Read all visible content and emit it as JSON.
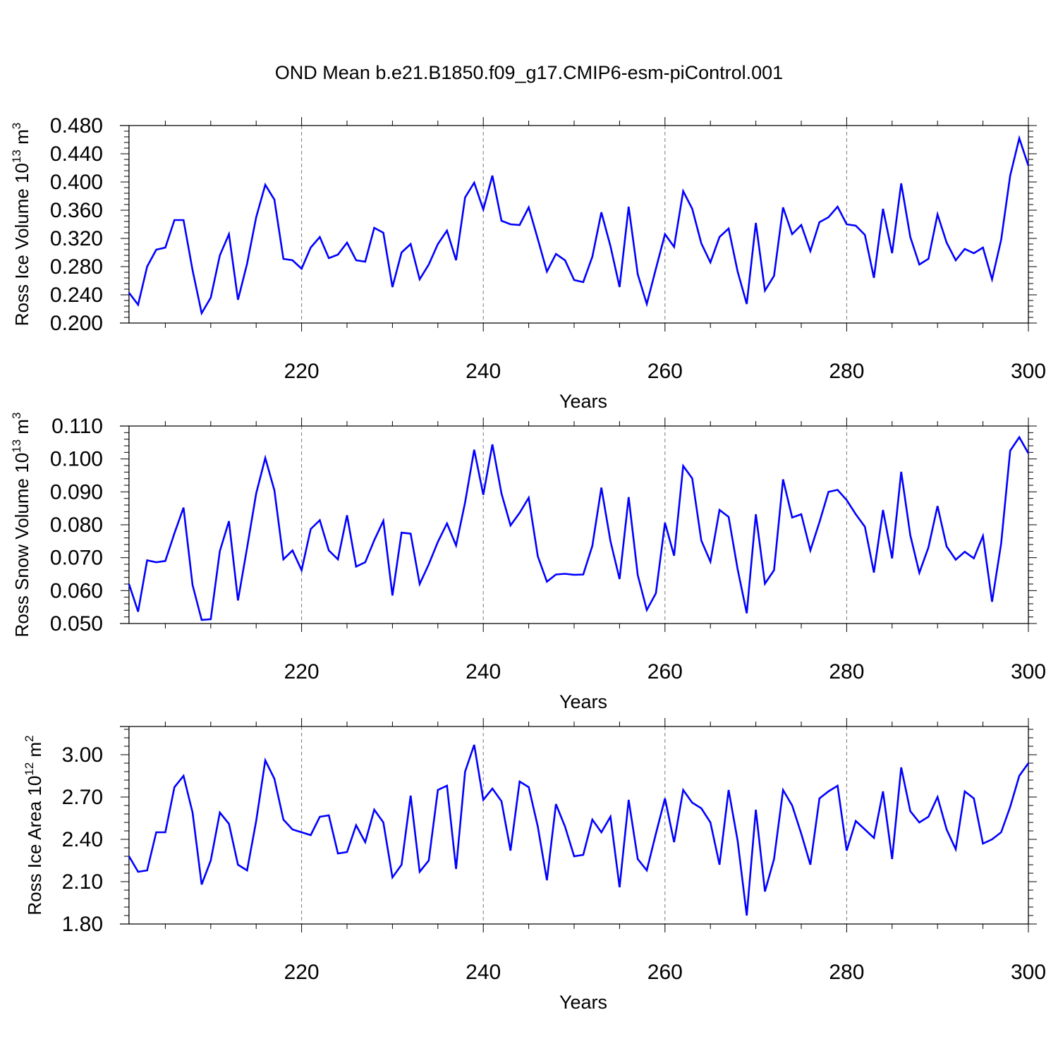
{
  "title": "OND Mean b.e21.B1850.f09_g17.CMIP6-esm-piControl.001",
  "colors": {
    "series": "#0000ff",
    "axis": "#000000",
    "grid": "#777777"
  },
  "chart_data": [
    {
      "type": "line",
      "ylabel_main": "Ross Ice Volume 10",
      "ylabel_exp1": "13",
      "ylabel_mid": " m",
      "ylabel_exp2": "3",
      "xlabel": "Years",
      "xlim": [
        200,
        300
      ],
      "ylim": [
        0.2,
        0.48
      ],
      "yticks": [
        "0.200",
        "0.240",
        "0.280",
        "0.320",
        "0.360",
        "0.400",
        "0.440",
        "0.480"
      ],
      "xticks": [
        "220",
        "240",
        "260",
        "280",
        "300"
      ],
      "grid": "vertical dashed at major x ticks",
      "x_start": 201,
      "values": [
        0.243,
        0.226,
        0.28,
        0.304,
        0.307,
        0.346,
        0.346,
        0.275,
        0.214,
        0.236,
        0.296,
        0.326,
        0.233,
        0.284,
        0.35,
        0.396,
        0.375,
        0.291,
        0.289,
        0.277,
        0.307,
        0.322,
        0.292,
        0.297,
        0.314,
        0.289,
        0.287,
        0.335,
        0.328,
        0.251,
        0.3,
        0.312,
        0.262,
        0.283,
        0.312,
        0.331,
        0.289,
        0.378,
        0.399,
        0.361,
        0.409,
        0.345,
        0.34,
        0.339,
        0.364,
        0.319,
        0.273,
        0.298,
        0.289,
        0.261,
        0.258,
        0.294,
        0.357,
        0.309,
        0.251,
        0.365,
        0.269,
        0.227,
        0.277,
        0.326,
        0.308,
        0.387,
        0.362,
        0.313,
        0.286,
        0.322,
        0.334,
        0.273,
        0.227,
        0.342,
        0.246,
        0.267,
        0.364,
        0.326,
        0.339,
        0.302,
        0.343,
        0.35,
        0.365,
        0.34,
        0.338,
        0.325,
        0.264,
        0.362,
        0.299,
        0.398,
        0.322,
        0.283,
        0.291,
        0.354,
        0.314,
        0.289,
        0.305,
        0.299,
        0.307,
        0.262,
        0.318,
        0.409,
        0.462,
        0.423
      ]
    },
    {
      "type": "line",
      "ylabel_main": "Ross Snow Volume 10",
      "ylabel_exp1": "13",
      "ylabel_mid": " m",
      "ylabel_exp2": "3",
      "xlabel": "Years",
      "xlim": [
        200,
        300
      ],
      "ylim": [
        0.05,
        0.11
      ],
      "yticks": [
        "0.050",
        "0.060",
        "0.070",
        "0.080",
        "0.090",
        "0.100",
        "0.110"
      ],
      "xticks": [
        "220",
        "240",
        "260",
        "280",
        "300"
      ],
      "grid": "vertical dashed at major x ticks",
      "x_start": 201,
      "values": [
        0.062,
        0.0536,
        0.0692,
        0.0686,
        0.069,
        0.0774,
        0.0852,
        0.0617,
        0.0511,
        0.0513,
        0.072,
        0.0811,
        0.057,
        0.073,
        0.0895,
        0.1003,
        0.0905,
        0.0695,
        0.0722,
        0.0662,
        0.0787,
        0.0814,
        0.0722,
        0.0695,
        0.0829,
        0.0673,
        0.0686,
        0.0753,
        0.0812,
        0.0585,
        0.0776,
        0.0773,
        0.062,
        0.068,
        0.0748,
        0.0804,
        0.0737,
        0.0868,
        0.1028,
        0.0891,
        0.1044,
        0.0895,
        0.0798,
        0.0836,
        0.0882,
        0.0704,
        0.0627,
        0.0649,
        0.0651,
        0.0648,
        0.0649,
        0.0736,
        0.0913,
        0.075,
        0.0635,
        0.0884,
        0.0647,
        0.0541,
        0.0592,
        0.0806,
        0.0706,
        0.0979,
        0.0941,
        0.0752,
        0.0688,
        0.0845,
        0.0824,
        0.0665,
        0.0531,
        0.0832,
        0.0621,
        0.0662,
        0.0938,
        0.0822,
        0.0832,
        0.0722,
        0.0808,
        0.09,
        0.0906,
        0.0875,
        0.0832,
        0.0794,
        0.0655,
        0.0845,
        0.0698,
        0.0961,
        0.0768,
        0.0654,
        0.0731,
        0.0857,
        0.0734,
        0.0694,
        0.0718,
        0.0698,
        0.0766,
        0.0566,
        0.0743,
        0.1025,
        0.1066,
        0.1017
      ]
    },
    {
      "type": "line",
      "ylabel_main": "Ross Ice Area 10",
      "ylabel_exp1": "12",
      "ylabel_mid": " m",
      "ylabel_exp2": "2",
      "xlabel": "Years",
      "xlim": [
        200,
        300
      ],
      "ylim": [
        1.8,
        3.2
      ],
      "yticks": [
        "1.80",
        "2.10",
        "2.40",
        "2.70",
        "3.00"
      ],
      "xticks": [
        "220",
        "240",
        "260",
        "280",
        "300"
      ],
      "grid": "vertical dashed at major x ticks",
      "x_start": 201,
      "values": [
        2.28,
        2.17,
        2.18,
        2.45,
        2.45,
        2.77,
        2.85,
        2.59,
        2.08,
        2.25,
        2.59,
        2.51,
        2.22,
        2.18,
        2.53,
        2.96,
        2.83,
        2.54,
        2.47,
        2.45,
        2.43,
        2.56,
        2.57,
        2.3,
        2.31,
        2.5,
        2.38,
        2.61,
        2.52,
        2.13,
        2.22,
        2.71,
        2.17,
        2.25,
        2.75,
        2.78,
        2.19,
        2.88,
        3.07,
        2.68,
        2.76,
        2.67,
        2.32,
        2.81,
        2.77,
        2.49,
        2.11,
        2.65,
        2.49,
        2.28,
        2.29,
        2.54,
        2.45,
        2.56,
        2.06,
        2.68,
        2.26,
        2.18,
        2.44,
        2.69,
        2.38,
        2.75,
        2.66,
        2.62,
        2.52,
        2.22,
        2.75,
        2.39,
        1.86,
        2.61,
        2.03,
        2.26,
        2.75,
        2.64,
        2.44,
        2.22,
        2.69,
        2.74,
        2.78,
        2.32,
        2.53,
        2.47,
        2.41,
        2.74,
        2.26,
        2.91,
        2.6,
        2.52,
        2.56,
        2.7,
        2.47,
        2.33,
        2.74,
        2.69,
        2.37,
        2.4,
        2.45,
        2.63,
        2.85,
        2.94
      ]
    }
  ]
}
